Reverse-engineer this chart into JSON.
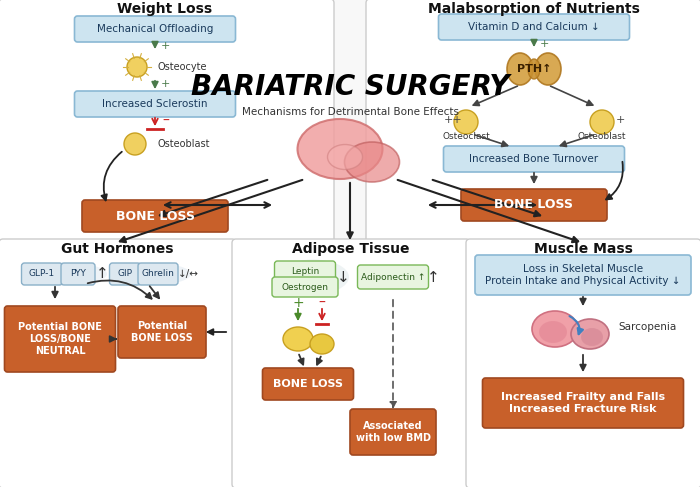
{
  "bg_color": "#f8f8f8",
  "blue_box_bg": "#cde4f0",
  "blue_box_border": "#8ab8d4",
  "orange_box_bg": "#c8602a",
  "orange_box_border": "#a04820",
  "green_pill_bg": "#e8f5e0",
  "green_pill_border": "#7ab858",
  "gray_pill_bg": "#dde8f0",
  "gray_pill_border": "#8ab0c8",
  "panel_bg": "#ffffff",
  "panel_border": "#cccccc",
  "center_title": "BARIATRIC SURGERY",
  "center_subtitle": "Mechanisms for Detrimental Bone Effects",
  "wl_title": "Weight Loss",
  "wl_box1": "Mechanical Offloading",
  "wl_osteocyte": "Osteocyte",
  "wl_box2": "Increased Sclerostin",
  "wl_osteoblast": "Osteoblast",
  "wl_bone_loss": "BONE LOSS",
  "mal_title": "Malabsorption of Nutrients",
  "mal_box1": "Vitamin D and Calcium ↓",
  "mal_pth": "PTH↑",
  "mal_osteoclast": "Osteoclast",
  "mal_osteoblast": "Osteoblast",
  "mal_box2": "Increased Bone Turnover",
  "mal_bone_loss": "BONE LOSS",
  "gut_title": "Gut Hormones",
  "gut_box1": "Potential BONE\nLOSS/BONE\nNEUTRAL",
  "gut_box2": "Potential\nBONE LOSS",
  "adi_title": "Adipose Tissue",
  "adi_pill1a": "Leptin",
  "adi_pill1b": "Oestrogen",
  "adi_pill2": "Adiponectin ↑",
  "adi_box1": "BONE LOSS",
  "adi_box2": "Associated\nwith low BMD",
  "mus_title": "Muscle Mass",
  "mus_box1": "Loss in Skeletal Muscle\nProtein Intake and Physical Activity ↓",
  "mus_sarco": "Sarcopenia",
  "mus_box2": "Increased Frailty and Falls\nIncreased Fracture Risk"
}
